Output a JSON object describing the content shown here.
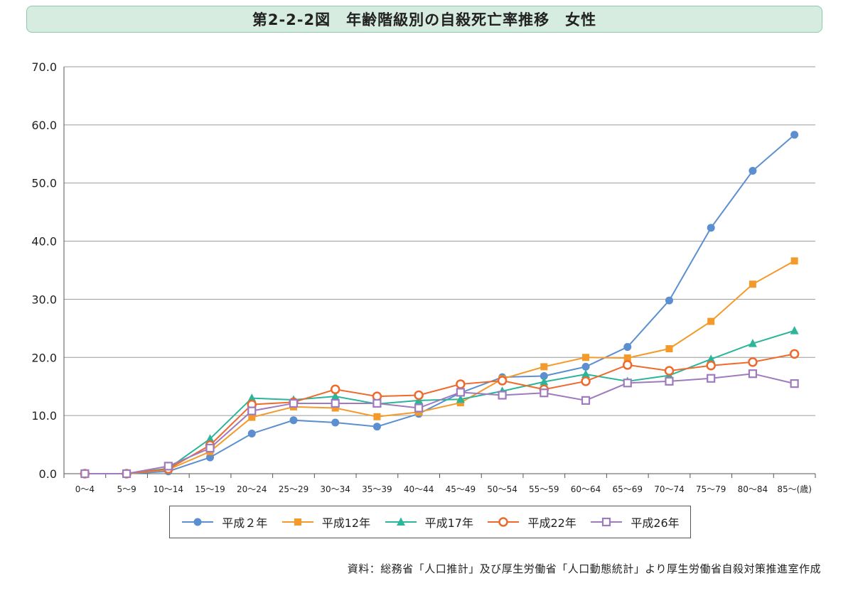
{
  "title": "第2-2-2図　年齢階級別の自殺死亡率推移　女性",
  "source": "資料：総務省「人口推計」及び厚生労働省「人口動態統計」より厚生労働省自殺対策推進室作成",
  "chart_data": {
    "type": "line",
    "categories": [
      "0～4",
      "5～9",
      "10～14",
      "15～19",
      "20～24",
      "25～29",
      "30～34",
      "35～39",
      "40～44",
      "45～49",
      "50～54",
      "55～59",
      "60～64",
      "65～69",
      "70～74",
      "75～79",
      "80～84",
      "85～(歳)"
    ],
    "ylim": [
      0,
      70
    ],
    "yticks": [
      "0.0",
      "10.0",
      "20.0",
      "30.0",
      "40.0",
      "50.0",
      "60.0",
      "70.0"
    ],
    "grid": true,
    "legend_position": "bottom",
    "series": [
      {
        "name": "平成２年",
        "color": "#5b8fd0",
        "marker": "circle",
        "values": [
          0.0,
          0.0,
          0.4,
          2.8,
          6.9,
          9.2,
          8.8,
          8.1,
          10.3,
          13.9,
          16.6,
          16.8,
          18.4,
          21.8,
          29.8,
          42.3,
          52.1,
          58.3
        ]
      },
      {
        "name": "平成12年",
        "color": "#f39a2b",
        "marker": "square",
        "values": [
          0.0,
          0.0,
          0.7,
          3.8,
          9.7,
          11.5,
          11.3,
          9.8,
          10.6,
          12.2,
          16.3,
          18.4,
          20.0,
          19.9,
          21.5,
          26.2,
          32.6,
          36.6
        ]
      },
      {
        "name": "平成17年",
        "color": "#2bb59a",
        "marker": "triangle",
        "values": [
          0.0,
          0.0,
          0.9,
          6.0,
          13.0,
          12.7,
          13.3,
          12.0,
          12.6,
          12.8,
          14.2,
          15.8,
          17.1,
          15.9,
          16.9,
          19.7,
          22.4,
          24.6
        ]
      },
      {
        "name": "平成22年",
        "color": "#ee6a2c",
        "marker": "circle-open",
        "values": [
          0.0,
          0.0,
          0.8,
          4.9,
          11.9,
          12.3,
          14.5,
          13.3,
          13.5,
          15.4,
          16.0,
          14.5,
          15.9,
          18.7,
          17.7,
          18.6,
          19.2,
          20.6
        ]
      },
      {
        "name": "平成26年",
        "color": "#9e7bbd",
        "marker": "square-open",
        "values": [
          0.0,
          0.0,
          1.3,
          4.4,
          10.8,
          12.1,
          12.1,
          12.1,
          11.3,
          14.0,
          13.5,
          13.9,
          12.6,
          15.6,
          15.9,
          16.4,
          17.2,
          15.5
        ]
      }
    ]
  }
}
